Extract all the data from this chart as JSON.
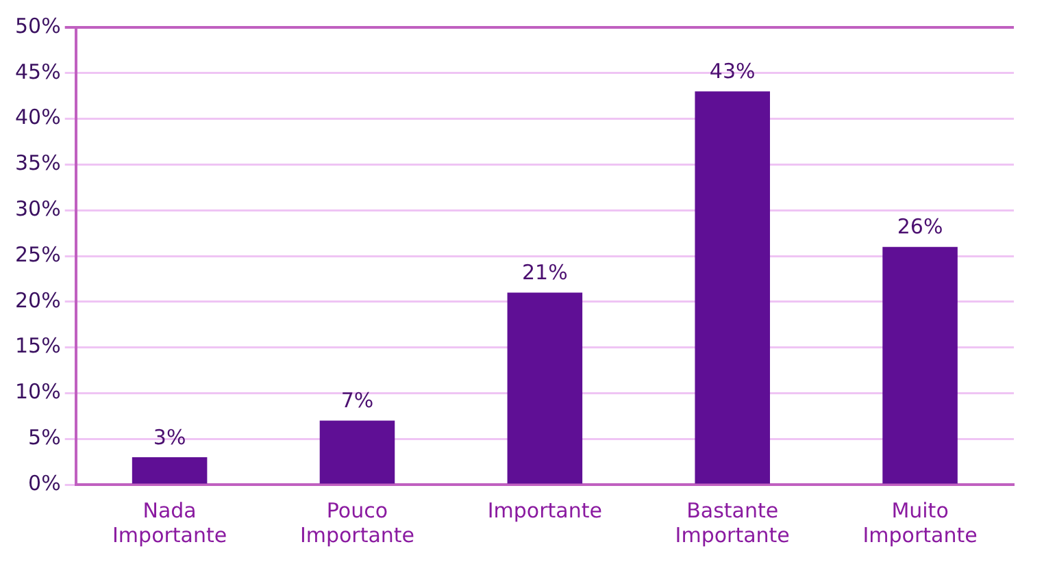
{
  "chart_data": {
    "type": "bar",
    "categories": [
      "Nada Importante",
      "Pouco Importante",
      "Importante",
      "Bastante Importante",
      "Muito Importante"
    ],
    "values": [
      3,
      7,
      21,
      43,
      26
    ],
    "value_labels": [
      "3%",
      "7%",
      "21%",
      "43%",
      "26%"
    ],
    "color": "#5f0f95",
    "ylim": [
      0,
      50
    ],
    "yticks": [
      {
        "value": 0,
        "label": "0%"
      },
      {
        "value": 5,
        "label": "5%"
      },
      {
        "value": 10,
        "label": "10%"
      },
      {
        "value": 15,
        "label": "15%"
      },
      {
        "value": 20,
        "label": "20%"
      },
      {
        "value": 25,
        "label": "25%"
      },
      {
        "value": 30,
        "label": "30%"
      },
      {
        "value": 35,
        "label": "35%"
      },
      {
        "value": 40,
        "label": "40%"
      },
      {
        "value": 45,
        "label": "45%"
      },
      {
        "value": 50,
        "label": "50%"
      }
    ],
    "grid": "y",
    "legend": false
  }
}
